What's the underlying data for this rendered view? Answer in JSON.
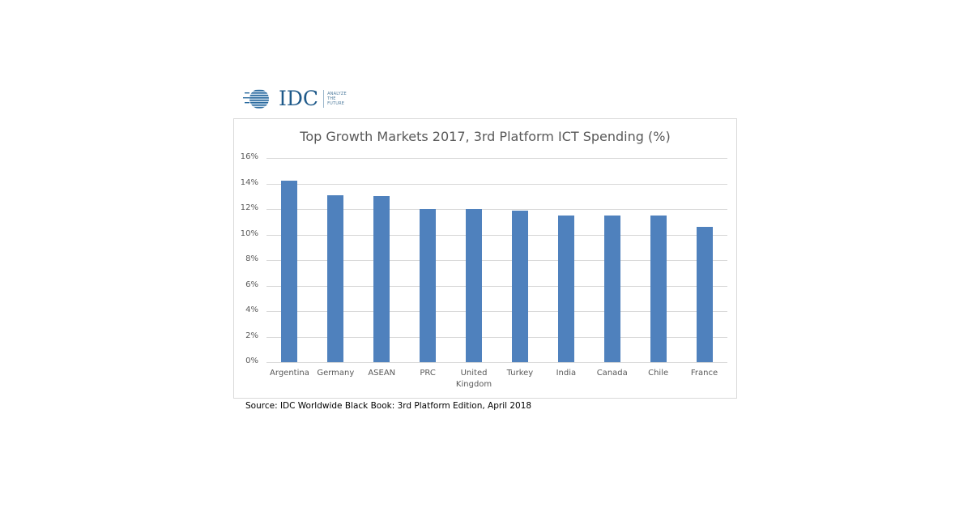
{
  "logo": {
    "brand": "IDC",
    "tagline": [
      "ANALYZE",
      "THE",
      "FUTURE"
    ]
  },
  "source": "Source: IDC Worldwide Black Book: 3rd Platform Edition, April 2018",
  "colors": {
    "bar": "#4f81bd",
    "grid": "#d9d9d9",
    "text": "#595959",
    "logo": "#1f5a8a"
  },
  "chart_data": {
    "type": "bar",
    "title": "Top Growth Markets 2017, 3rd Platform ICT Spending (%)",
    "xlabel": "",
    "ylabel": "",
    "categories": [
      "Argentina",
      "Germany",
      "ASEAN",
      "PRC",
      "United Kingdom",
      "Turkey",
      "India",
      "Canada",
      "Chile",
      "France"
    ],
    "values": [
      14.2,
      13.1,
      13.0,
      12.0,
      12.0,
      11.9,
      11.5,
      11.5,
      11.5,
      10.6
    ],
    "ylim": [
      0,
      16
    ],
    "yticks": [
      "0%",
      "2%",
      "4%",
      "6%",
      "8%",
      "10%",
      "12%",
      "14%",
      "16%"
    ],
    "grid": true,
    "legend": "none"
  }
}
